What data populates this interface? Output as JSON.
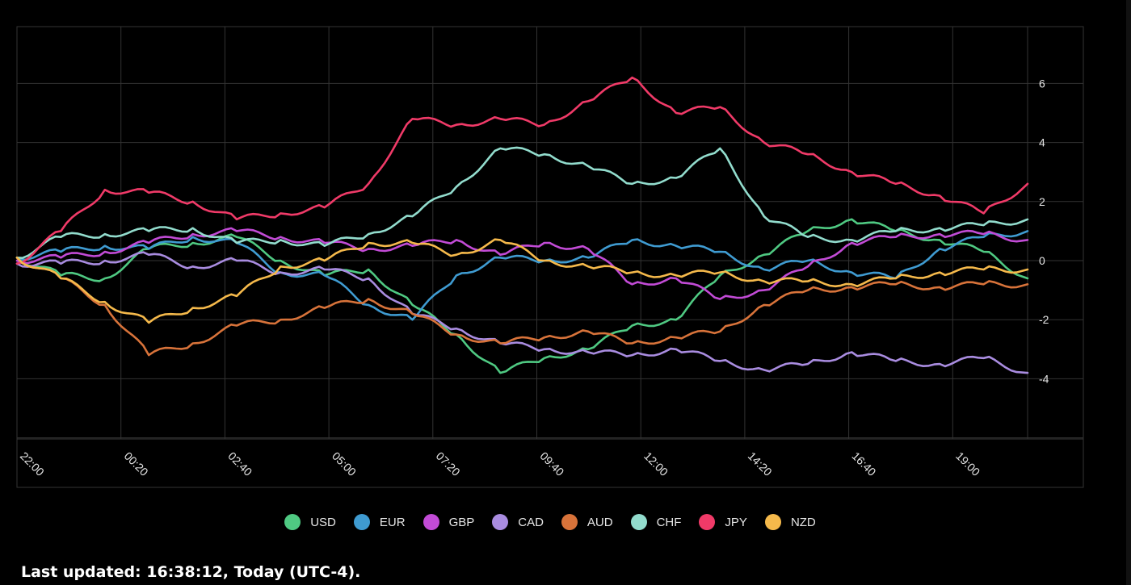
{
  "chart_data": {
    "type": "line",
    "x_ticks": [
      "22:00",
      "00:20",
      "02:40",
      "05:00",
      "07:20",
      "09:40",
      "12:00",
      "14:20",
      "16:40",
      "19:00"
    ],
    "ylim": [
      -6,
      8
    ],
    "y_ticks": [
      -4,
      -2,
      0,
      2,
      4,
      6
    ],
    "grid": true,
    "legend_position": "bottom",
    "points_per_series": 24,
    "series": [
      {
        "name": "USD",
        "color": "#4fc982",
        "values": [
          0.1,
          -0.5,
          -0.6,
          0.4,
          0.6,
          0.8,
          0.0,
          -0.5,
          -0.3,
          -1.5,
          -2.5,
          -3.8,
          -3.3,
          -3.0,
          -2.2,
          -2.0,
          -0.5,
          0.2,
          1.0,
          1.4,
          1.0,
          0.7,
          0.3,
          -0.6
        ]
      },
      {
        "name": "EUR",
        "color": "#3f9bd1",
        "values": [
          0.1,
          0.3,
          0.5,
          0.4,
          0.8,
          0.6,
          -0.4,
          -0.5,
          -1.5,
          -2.0,
          -0.5,
          0.1,
          0.0,
          0.1,
          0.7,
          0.5,
          0.3,
          -0.3,
          0.0,
          -0.4,
          -0.6,
          0.4,
          0.8,
          1.0
        ]
      },
      {
        "name": "GBP",
        "color": "#c24bd6",
        "values": [
          0.0,
          0.1,
          0.3,
          0.6,
          0.9,
          1.0,
          0.8,
          0.6,
          0.4,
          0.5,
          0.7,
          0.2,
          0.6,
          0.4,
          -0.8,
          -0.6,
          -1.3,
          -1.0,
          -0.2,
          0.6,
          0.8,
          0.9,
          0.9,
          0.7
        ]
      },
      {
        "name": "CAD",
        "color": "#a98ce0",
        "values": [
          -0.1,
          -0.1,
          0.0,
          0.2,
          -0.2,
          0.0,
          -0.4,
          -0.3,
          -0.6,
          -1.8,
          -2.3,
          -2.8,
          -3.0,
          -3.1,
          -3.2,
          -3.0,
          -3.4,
          -3.7,
          -3.5,
          -3.1,
          -3.4,
          -3.5,
          -3.3,
          -3.8
        ]
      },
      {
        "name": "AUD",
        "color": "#d8733a",
        "values": [
          0.1,
          -0.6,
          -1.5,
          -3.2,
          -2.8,
          -2.2,
          -2.0,
          -1.6,
          -1.3,
          -1.8,
          -2.5,
          -2.8,
          -2.6,
          -2.4,
          -2.8,
          -2.6,
          -2.4,
          -1.5,
          -1.0,
          -0.9,
          -0.8,
          -0.9,
          -0.8,
          -0.8
        ]
      },
      {
        "name": "CHF",
        "color": "#92dccd",
        "values": [
          0.1,
          0.8,
          0.9,
          1.0,
          1.1,
          0.6,
          0.7,
          0.5,
          0.9,
          1.5,
          2.5,
          3.8,
          3.6,
          3.2,
          2.6,
          2.8,
          3.8,
          1.5,
          0.8,
          0.7,
          1.0,
          1.1,
          1.2,
          1.4
        ]
      },
      {
        "name": "JPY",
        "color": "#f03a68",
        "values": [
          -0.1,
          1.0,
          2.4,
          2.3,
          2.0,
          1.4,
          1.6,
          1.8,
          2.6,
          4.8,
          4.6,
          4.8,
          4.6,
          5.4,
          6.2,
          5.0,
          5.2,
          4.0,
          3.6,
          3.0,
          2.6,
          2.2,
          1.6,
          2.6
        ]
      },
      {
        "name": "NZD",
        "color": "#f5b94b",
        "values": [
          0.1,
          -0.6,
          -1.4,
          -2.1,
          -1.6,
          -1.2,
          -0.2,
          0.0,
          0.6,
          0.6,
          0.2,
          0.7,
          0.0,
          -0.2,
          -0.4,
          -0.5,
          -0.4,
          -0.7,
          -0.7,
          -0.8,
          -0.6,
          -0.4,
          -0.3,
          -0.3
        ]
      }
    ]
  },
  "footer": {
    "last_updated": "Last updated: 16:38:12, Today (UTC-4)."
  }
}
